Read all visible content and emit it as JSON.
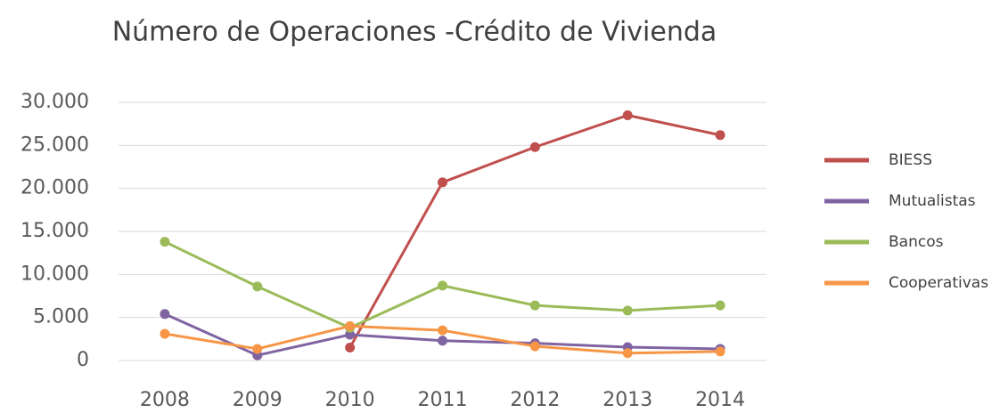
{
  "chart_data": {
    "type": "line",
    "title": "Número de Operaciones -Crédito de Vivienda",
    "categories": [
      "2008",
      "2009",
      "2010",
      "2011",
      "2012",
      "2013",
      "2014"
    ],
    "series": [
      {
        "name": "BIESS",
        "color": "#c0504d",
        "values": [
          null,
          null,
          1500,
          20700,
          24800,
          28500,
          26200
        ]
      },
      {
        "name": "Mutualistas",
        "color": "#8064a2",
        "values": [
          5400,
          600,
          3000,
          2300,
          2000,
          1550,
          1350
        ]
      },
      {
        "name": "Bancos",
        "color": "#9bbb59",
        "values": [
          13800,
          8600,
          3800,
          8700,
          6400,
          5800,
          6400
        ]
      },
      {
        "name": "Cooperativas",
        "color": "#f79646",
        "values": [
          3100,
          1350,
          4000,
          3500,
          1650,
          850,
          1050
        ]
      }
    ],
    "ylim": [
      0,
      30000
    ],
    "yticks": [
      0,
      {
        "value": 5000,
        "label": "5.000"
      },
      {
        "value": 10000,
        "label": "10.000"
      },
      {
        "value": 15000,
        "label": "15.000"
      },
      {
        "value": 20000,
        "label": "20.000"
      },
      {
        "value": 25000,
        "label": "25.000"
      },
      {
        "value": 30000,
        "label": "30.000"
      }
    ],
    "grid": true,
    "legend": "right"
  }
}
